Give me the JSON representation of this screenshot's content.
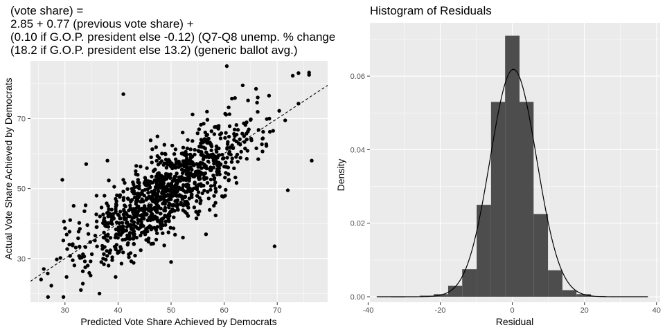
{
  "chart_data": [
    {
      "type": "scatter",
      "title_lines": [
        "(vote share) =",
        "2.85 + 0.77 (previous vote share) +",
        "(0.10 if G.O.P. president else -0.12) (Q7-Q8 unemp. % change) +",
        "(18.2 if G.O.P. president else 13.2) (generic ballot avg.)"
      ],
      "xlabel": "Predicted Vote Share Achieved by Democrats",
      "ylabel": "Actual Vote Share Achieved by Democrats",
      "xlim": [
        23.5,
        79.5
      ],
      "ylim": [
        17.5,
        86.5
      ],
      "xticks": [
        30,
        40,
        50,
        60,
        70
      ],
      "yticks": [
        30,
        50,
        70
      ],
      "grid": true,
      "reference_line": {
        "style": "dashed",
        "slope": 1,
        "intercept": 0
      },
      "point_count_approx": 1100,
      "points_sample": [
        [
          26.8,
          19
        ],
        [
          36.5,
          20
        ],
        [
          33,
          21
        ],
        [
          29.5,
          52.5
        ],
        [
          34,
          57
        ],
        [
          38,
          58
        ],
        [
          41,
          77
        ],
        [
          60.5,
          85
        ],
        [
          74,
          83
        ],
        [
          69.5,
          33.5
        ],
        [
          72,
          49.5
        ],
        [
          76.5,
          58
        ],
        [
          71.5,
          69.5
        ],
        [
          66,
          78.5
        ],
        [
          63.5,
          79.5
        ],
        [
          50,
          29
        ],
        [
          25.5,
          24
        ],
        [
          26,
          27
        ],
        [
          45,
          45
        ],
        [
          50,
          50
        ],
        [
          55,
          55
        ],
        [
          48,
          40
        ],
        [
          52,
          60
        ],
        [
          58,
          58
        ],
        [
          44,
          50
        ]
      ],
      "point_generation": {
        "model": "y = x + noise",
        "x_mean": 49,
        "x_sd": 8.2,
        "noise_sd": 6,
        "seed": 42
      }
    },
    {
      "type": "bar",
      "title": "Histogram of Residuals",
      "xlabel": "Residual",
      "ylabel": "Density",
      "xlim": [
        -39.5,
        41
      ],
      "ylim": [
        -0.0015,
        0.0745
      ],
      "xticks": [
        -40,
        -20,
        0,
        20,
        40
      ],
      "yticks": [
        0.0,
        0.02,
        0.04,
        0.06
      ],
      "ytick_labels": [
        "0.00",
        "0.02",
        "0.04",
        "0.06"
      ],
      "bin_width": 3.96,
      "bins": [
        {
          "x0": -37.6,
          "x1": -33.6,
          "density": 0.0001
        },
        {
          "x0": -33.6,
          "x1": -29.7,
          "density": 0.0
        },
        {
          "x0": -29.7,
          "x1": -25.7,
          "density": 0.0001
        },
        {
          "x0": -25.7,
          "x1": -21.8,
          "density": 0.0003
        },
        {
          "x0": -21.8,
          "x1": -17.8,
          "density": 0.0007
        },
        {
          "x0": -17.8,
          "x1": -13.9,
          "density": 0.003
        },
        {
          "x0": -13.9,
          "x1": -9.9,
          "density": 0.0075
        },
        {
          "x0": -9.9,
          "x1": -5.9,
          "density": 0.025
        },
        {
          "x0": -5.9,
          "x1": -2.0,
          "density": 0.053
        },
        {
          "x0": -2.0,
          "x1": 2.0,
          "density": 0.071
        },
        {
          "x0": 2.0,
          "x1": 5.9,
          "density": 0.053
        },
        {
          "x0": 5.9,
          "x1": 9.9,
          "density": 0.0225
        },
        {
          "x0": 9.9,
          "x1": 13.9,
          "density": 0.0072
        },
        {
          "x0": 13.9,
          "x1": 17.8,
          "density": 0.0018
        },
        {
          "x0": 17.8,
          "x1": 21.8,
          "density": 0.0007
        },
        {
          "x0": 21.8,
          "x1": 25.7,
          "density": 0.0002
        },
        {
          "x0": 25.7,
          "x1": 29.7,
          "density": 0.0001
        },
        {
          "x0": 29.7,
          "x1": 33.6,
          "density": 0.0001
        },
        {
          "x0": 33.6,
          "x1": 37.6,
          "density": 0.0001
        }
      ],
      "density_curve": {
        "type": "normal",
        "mean": 0.3,
        "sd": 6.45,
        "x_range": [
          -37.6,
          37.6
        ]
      }
    }
  ],
  "colors": {
    "panel_bg": "#ebebeb",
    "grid_major": "#ffffff",
    "bar_fill": "#4d4d4d",
    "point": "#000000",
    "curve": "#000000",
    "tick_label": "#4d4d4d"
  }
}
